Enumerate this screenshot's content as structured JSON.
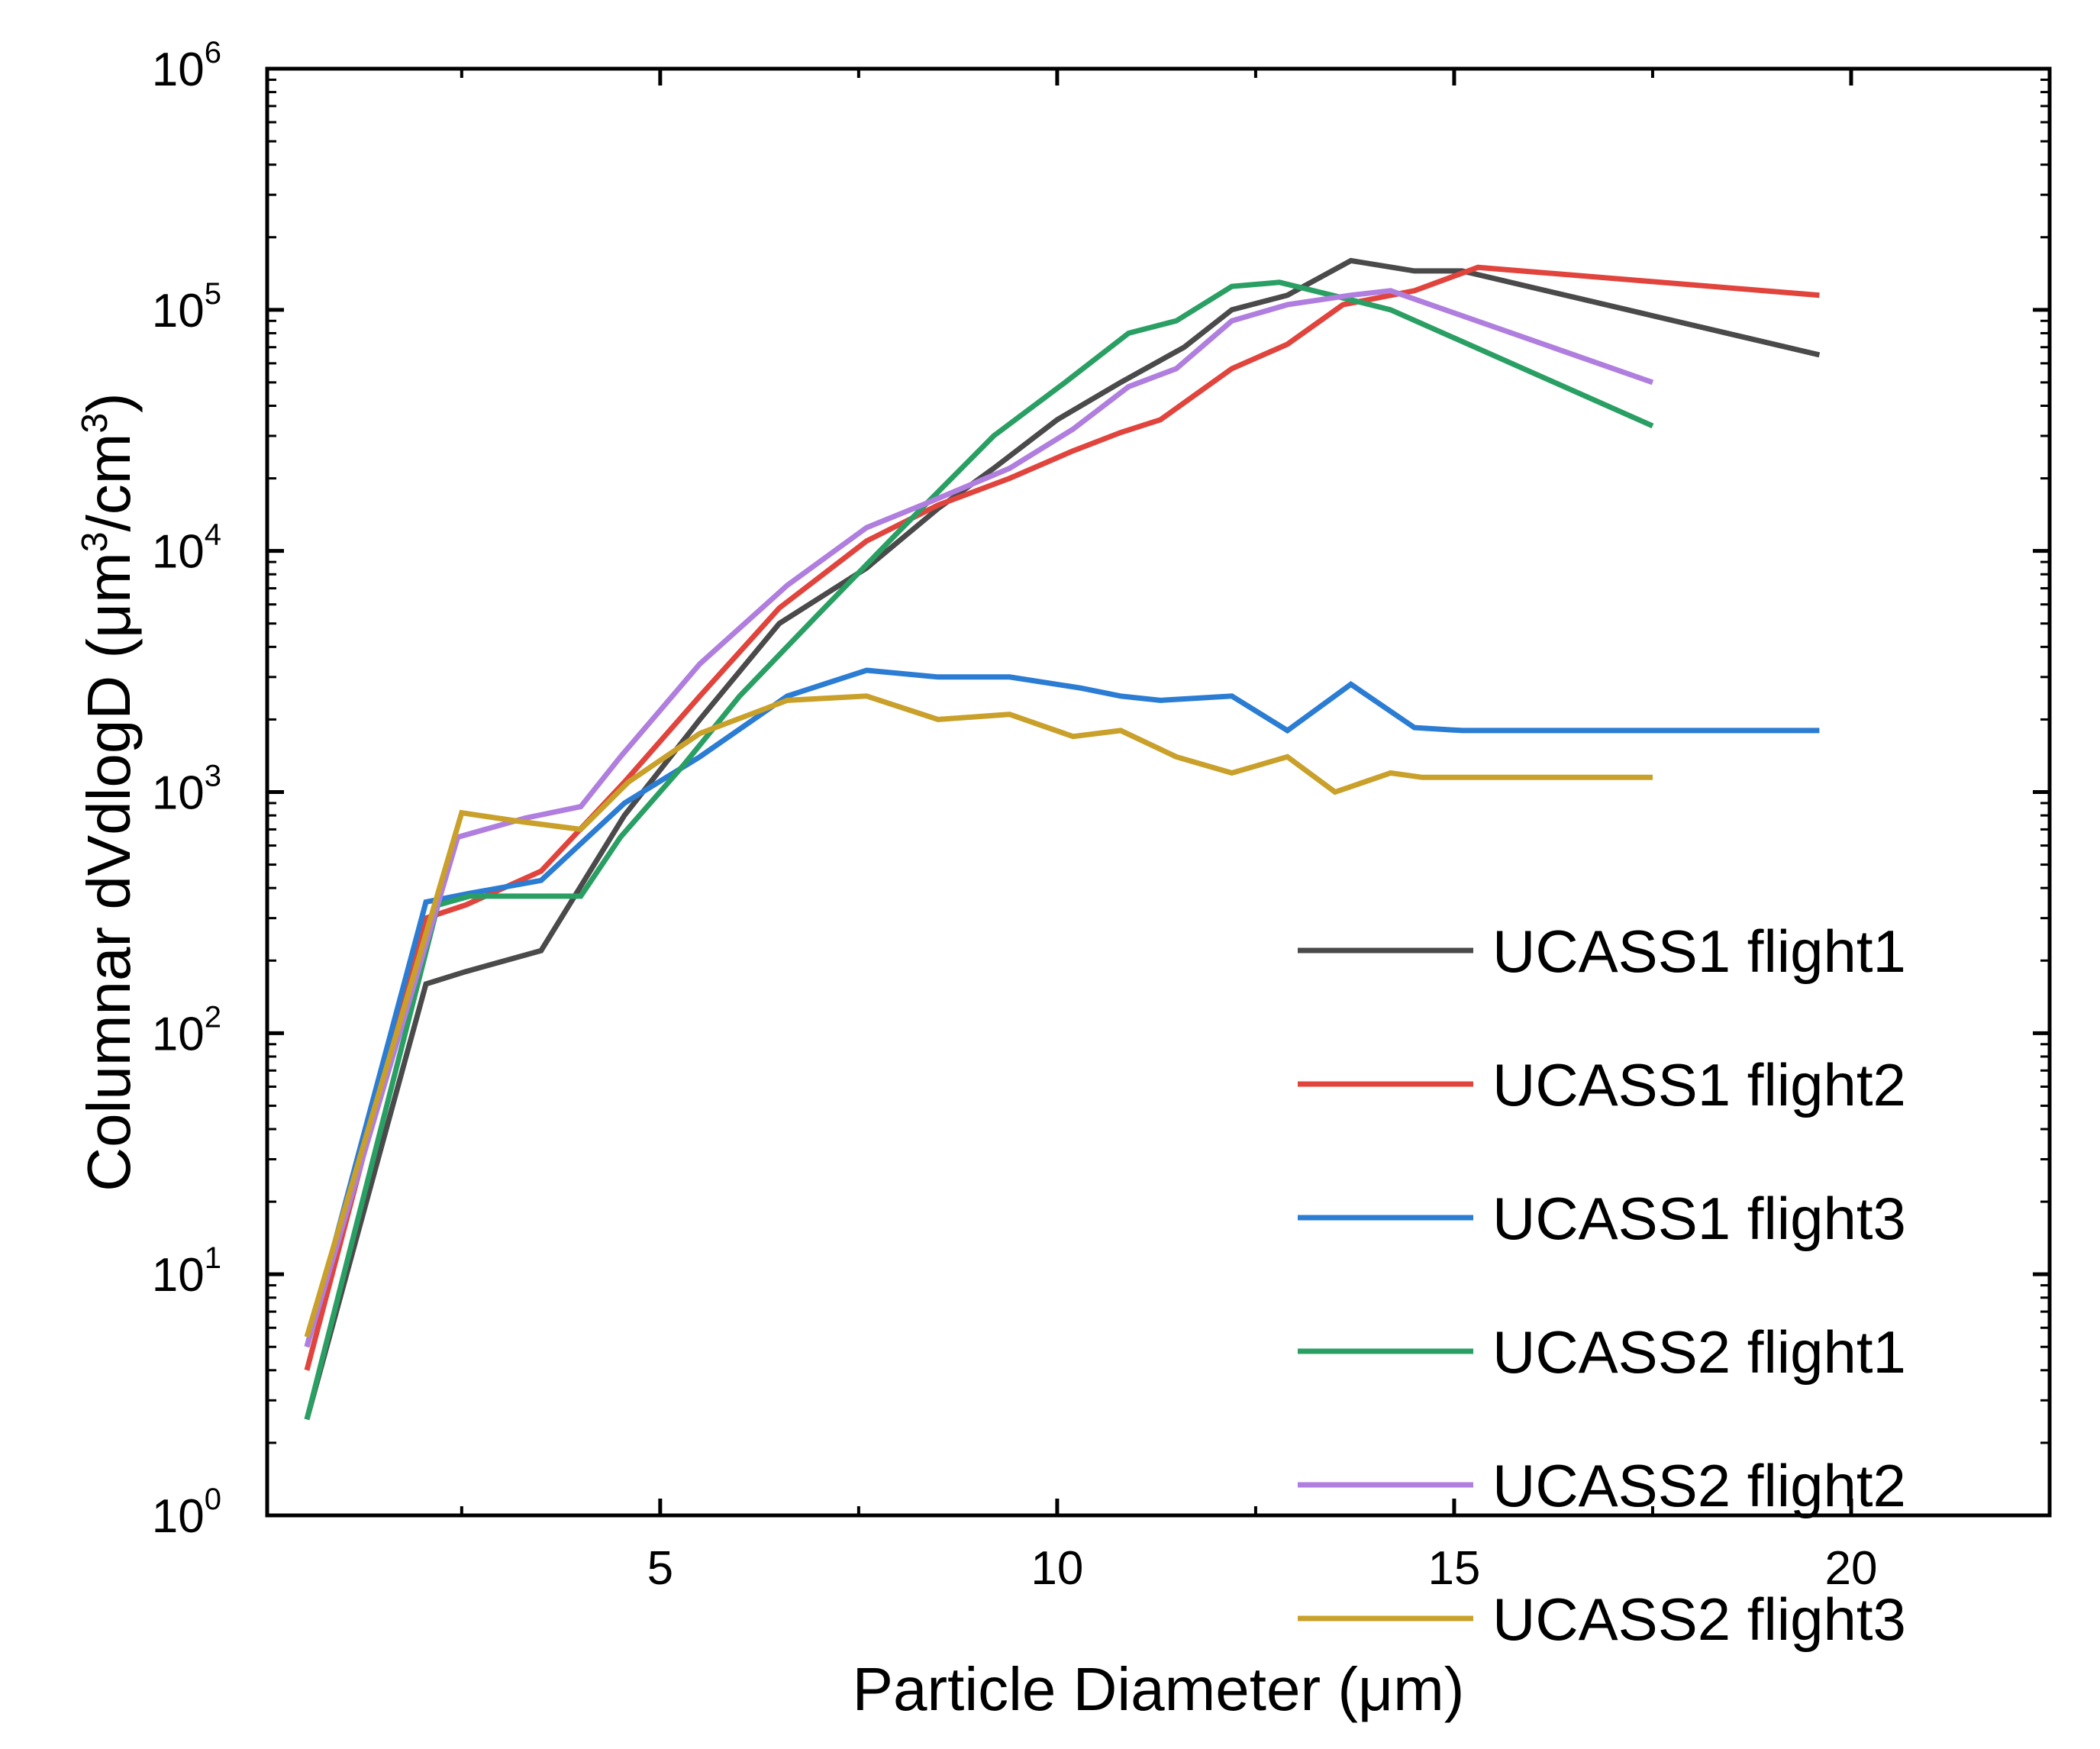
{
  "chart_data": {
    "type": "line",
    "title": "",
    "xlabel": "Particle Diameter (μm)",
    "ylabel": "Columnar dVdlogD (μm³/cm³)",
    "ylabel_parts": {
      "main": "Columnar dVdlogD (μm",
      "sup1": "3",
      "mid": "/cm",
      "sup2": "3",
      "end": ")"
    },
    "x_scale": "linear",
    "y_scale": "log",
    "xlim": [
      0.05,
      22.5
    ],
    "ylim": [
      1,
      1000000
    ],
    "x_ticks": [
      5,
      10,
      15,
      20
    ],
    "x_tick_labels": [
      "5",
      "10",
      "15",
      "20"
    ],
    "y_tick_exponents": [
      0,
      1,
      2,
      3,
      4,
      5,
      6
    ],
    "y_tick_labels": [
      "10⁰",
      "10¹",
      "10²",
      "10³",
      "10⁴",
      "10⁵",
      "10⁶"
    ],
    "legend_position": "lower-right",
    "series": [
      {
        "name": "UCASS1 flight1",
        "color": "#4a4a4a",
        "x": [
          0.55,
          2.05,
          2.55,
          3.5,
          4.55,
          5.5,
          6.5,
          7.6,
          8.5,
          9.2,
          10.0,
          10.8,
          11.6,
          12.2,
          12.9,
          13.7,
          14.5,
          15.1,
          19.6
        ],
        "y": [
          2.5,
          160,
          180,
          220,
          800,
          2000,
          5000,
          8500,
          15000,
          22000,
          35000,
          50000,
          70000,
          100000,
          115000,
          160000,
          145000,
          145000,
          65000
        ]
      },
      {
        "name": "UCASS1 flight2",
        "color": "#e0443c",
        "x": [
          0.55,
          2.05,
          2.55,
          3.5,
          4.55,
          5.5,
          6.5,
          7.6,
          8.5,
          9.4,
          10.2,
          10.8,
          11.3,
          12.2,
          12.9,
          13.6,
          14.5,
          15.3,
          19.6
        ],
        "y": [
          4,
          300,
          340,
          470,
          1100,
          2500,
          5800,
          11000,
          15500,
          20000,
          26000,
          31000,
          35000,
          57000,
          72000,
          105000,
          120000,
          150000,
          115000
        ]
      },
      {
        "name": "UCASS1 flight3",
        "color": "#2b7cd3",
        "x": [
          0.55,
          2.05,
          2.6,
          3.5,
          4.55,
          5.5,
          6.6,
          7.6,
          8.5,
          9.4,
          10.3,
          10.8,
          11.3,
          12.2,
          12.9,
          13.7,
          14.5,
          15.1,
          19.6
        ],
        "y": [
          5,
          350,
          380,
          430,
          900,
          1400,
          2500,
          3200,
          3000,
          3000,
          2700,
          2500,
          2400,
          2500,
          1800,
          2800,
          1850,
          1800,
          1800
        ]
      },
      {
        "name": "UCASS2 flight1",
        "color": "#2a9f63",
        "x": [
          0.55,
          2.2,
          2.6,
          3.3,
          4.0,
          4.5,
          5.3,
          6.0,
          7.0,
          8.0,
          9.2,
          10.1,
          10.9,
          11.5,
          12.2,
          12.8,
          13.7,
          14.2,
          17.5
        ],
        "y": [
          2.5,
          340,
          370,
          370,
          370,
          650,
          1300,
          2500,
          5500,
          12000,
          30000,
          50000,
          80000,
          90000,
          125000,
          130000,
          110000,
          100000,
          33000
        ]
      },
      {
        "name": "UCASS2 flight2",
        "color": "#b07ede",
        "x": [
          0.55,
          2.45,
          3.3,
          4.0,
          4.5,
          5.5,
          6.6,
          7.6,
          8.4,
          9.4,
          10.2,
          10.9,
          11.5,
          12.2,
          12.9,
          13.7,
          14.2,
          17.5
        ],
        "y": [
          5,
          650,
          780,
          870,
          1400,
          3400,
          7200,
          12500,
          16000,
          22000,
          32000,
          48000,
          57000,
          90000,
          105000,
          115000,
          120000,
          50000
        ]
      },
      {
        "name": "UCASS2 flight3",
        "color": "#c9a02a",
        "x": [
          0.55,
          2.5,
          3.3,
          4.0,
          4.6,
          5.5,
          6.6,
          7.6,
          8.5,
          9.4,
          10.2,
          10.8,
          11.5,
          12.2,
          12.9,
          13.5,
          14.2,
          14.6,
          17.5
        ],
        "y": [
          5.5,
          820,
          750,
          700,
          1100,
          1750,
          2400,
          2500,
          2000,
          2100,
          1700,
          1800,
          1400,
          1200,
          1400,
          1000,
          1200,
          1150,
          1150
        ]
      }
    ]
  }
}
